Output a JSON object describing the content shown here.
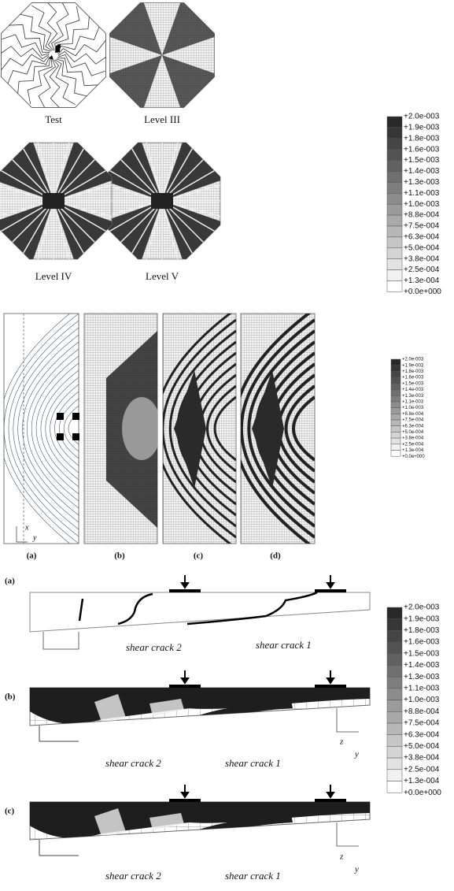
{
  "figure1": {
    "labels": [
      "Test",
      "Level III",
      "Level IV",
      "Level V"
    ]
  },
  "figure2": {
    "labels": [
      "(a)",
      "(b)",
      "(c)",
      "(d)"
    ],
    "axis_x": "x",
    "axis_y": "y"
  },
  "figure3": {
    "labels": [
      "(a)",
      "(b)",
      "(c)"
    ],
    "crack_2": "shear crack 2",
    "crack_1": "shear crack 1",
    "axis_z": "z",
    "axis_y": "y"
  },
  "legend": {
    "labels": [
      "+2.0e-003",
      "+1.9e-003",
      "+1.8e-003",
      "+1.6e-003",
      "+1.5e-003",
      "+1.4e-003",
      "+1.3e-003",
      "+1.1e-003",
      "+1.0e-003",
      "+8.8e-004",
      "+7.5e-004",
      "+6.3e-004",
      "+5.0e-004",
      "+3.8e-004",
      "+2.5e-004",
      "+1.3e-004",
      "+0.0e+000"
    ]
  }
}
